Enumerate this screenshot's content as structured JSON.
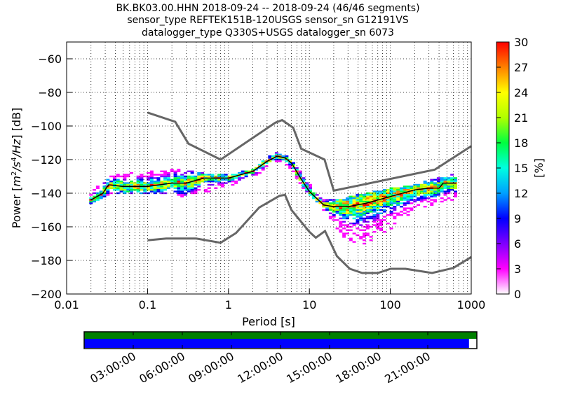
{
  "title_lines": [
    "BK.BK03.00.HHN   2018-09-24 -- 2018-09-24  (46/46 segments)",
    "sensor_type REFTEK151B-120USGS sensor_sn G12191VS",
    "datalogger_type Q330S+USGS datalogger_sn 6073"
  ],
  "chart_data": {
    "type": "heatmap",
    "xlabel": "Period [s]",
    "ylabel_parts": [
      "Power [",
      "m",
      "2",
      "/",
      "s",
      "4",
      "/",
      "Hz",
      "] [dB]"
    ],
    "xscale": "log",
    "xlim": [
      0.01,
      1000
    ],
    "ylim": [
      -200,
      -50
    ],
    "xticks": [
      {
        "v": 0.01,
        "label": "0.01"
      },
      {
        "v": 0.1,
        "label": "0.1"
      },
      {
        "v": 1,
        "label": "1"
      },
      {
        "v": 10,
        "label": "10"
      },
      {
        "v": 100,
        "label": "100"
      },
      {
        "v": 1000,
        "label": "1000"
      }
    ],
    "yticks": [
      {
        "v": -60,
        "label": "−60"
      },
      {
        "v": -80,
        "label": "−80"
      },
      {
        "v": -100,
        "label": "−100"
      },
      {
        "v": -120,
        "label": "−120"
      },
      {
        "v": -140,
        "label": "−140"
      },
      {
        "v": -160,
        "label": "−160"
      },
      {
        "v": -180,
        "label": "−180"
      },
      {
        "v": -200,
        "label": "−200"
      }
    ],
    "grid": true,
    "colorbar": {
      "label": "[%]",
      "range": [
        0,
        30
      ],
      "ticks": [
        "0",
        "3",
        "6",
        "9",
        "12",
        "15",
        "18",
        "21",
        "24",
        "27",
        "30"
      ],
      "colors": [
        "#ffffff",
        "#ff00ff",
        "#7f00ff",
        "#0000ff",
        "#00a0ff",
        "#00ffe0",
        "#00ff40",
        "#b0ff00",
        "#ffff00",
        "#ff8000",
        "#ff0000"
      ]
    },
    "series": [
      {
        "name": "NHNM",
        "color": "#666666",
        "points": [
          [
            0.1,
            -92
          ],
          [
            0.22,
            -97.5
          ],
          [
            0.32,
            -110.5
          ],
          [
            0.8,
            -120
          ],
          [
            3.8,
            -98
          ],
          [
            4.6,
            -96.5
          ],
          [
            6.3,
            -101
          ],
          [
            7.9,
            -113.5
          ],
          [
            15.4,
            -120
          ],
          [
            20,
            -138.5
          ],
          [
            354,
            -126
          ],
          [
            1000,
            -112
          ]
        ]
      },
      {
        "name": "NLNM",
        "color": "#666666",
        "points": [
          [
            0.1,
            -168
          ],
          [
            0.17,
            -167
          ],
          [
            0.4,
            -167
          ],
          [
            0.8,
            -169.5
          ],
          [
            1.24,
            -163.7
          ],
          [
            2.4,
            -148.5
          ],
          [
            4.3,
            -141.5
          ],
          [
            5,
            -141
          ],
          [
            6,
            -150
          ],
          [
            10,
            -163
          ],
          [
            12,
            -166.5
          ],
          [
            15.6,
            -162.5
          ],
          [
            21.9,
            -177.5
          ],
          [
            31.6,
            -185
          ],
          [
            45,
            -187.5
          ],
          [
            70,
            -187.5
          ],
          [
            101,
            -185
          ],
          [
            154,
            -185
          ],
          [
            328,
            -187.5
          ],
          [
            600,
            -184.5
          ],
          [
            1000,
            -178
          ]
        ]
      },
      {
        "name": "mean",
        "color": "#000000",
        "points": [
          [
            0.02,
            -144
          ],
          [
            0.028,
            -140
          ],
          [
            0.033,
            -135
          ],
          [
            0.05,
            -136
          ],
          [
            0.1,
            -136
          ],
          [
            0.2,
            -134
          ],
          [
            0.3,
            -134
          ],
          [
            0.5,
            -131
          ],
          [
            1,
            -131
          ],
          [
            2,
            -127
          ],
          [
            3,
            -121
          ],
          [
            4,
            -118
          ],
          [
            5,
            -119
          ],
          [
            6,
            -122
          ],
          [
            8,
            -132
          ],
          [
            10,
            -139
          ],
          [
            15,
            -147
          ],
          [
            20,
            -148
          ],
          [
            30,
            -148
          ],
          [
            50,
            -146
          ],
          [
            100,
            -142
          ],
          [
            200,
            -138
          ],
          [
            300,
            -137
          ],
          [
            400,
            -137
          ],
          [
            450,
            -134
          ],
          [
            650,
            -134
          ]
        ]
      }
    ],
    "density_band": [
      [
        0.02,
        -146,
        -140
      ],
      [
        0.03,
        -142,
        -130
      ],
      [
        0.05,
        -140,
        -128
      ],
      [
        0.1,
        -140,
        -127
      ],
      [
        0.2,
        -140,
        -126
      ],
      [
        0.3,
        -143,
        -125
      ],
      [
        0.5,
        -140,
        -128
      ],
      [
        1,
        -136,
        -129
      ],
      [
        2,
        -131,
        -125
      ],
      [
        3,
        -125,
        -119
      ],
      [
        4,
        -121,
        -115
      ],
      [
        5,
        -122,
        -117
      ],
      [
        6,
        -126,
        -120
      ],
      [
        8,
        -136,
        -128
      ],
      [
        10,
        -141,
        -134
      ],
      [
        15,
        -150,
        -144
      ],
      [
        20,
        -158,
        -144
      ],
      [
        30,
        -170,
        -142
      ],
      [
        50,
        -170,
        -140
      ],
      [
        100,
        -162,
        -137
      ],
      [
        200,
        -152,
        -135
      ],
      [
        300,
        -148,
        -132
      ],
      [
        650,
        -144,
        -128
      ]
    ]
  },
  "timeline": {
    "tick_labels": [
      "03:00:00",
      "06:00:00",
      "09:00:00",
      "12:00:00",
      "15:00:00",
      "18:00:00",
      "21:00:00"
    ],
    "coverage_fraction": 0.98,
    "colors": {
      "data": "#0000ff",
      "processed": "#008000"
    }
  }
}
